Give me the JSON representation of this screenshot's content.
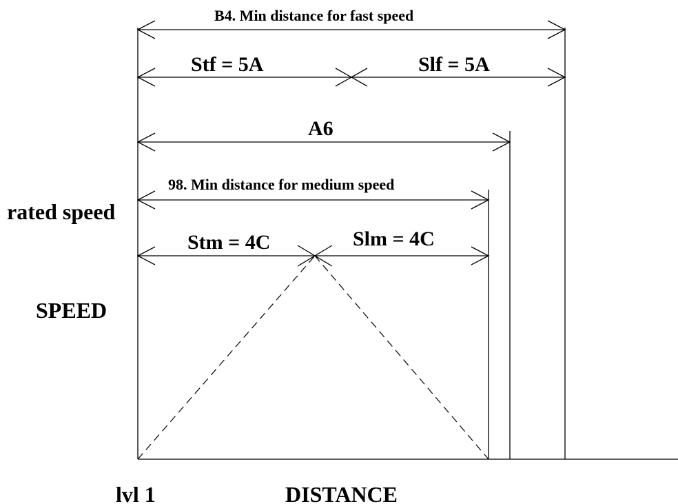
{
  "labels": {
    "fast_total": "B4. Min distance for fast speed",
    "stf": "Stf = 5A",
    "slf": "Slf = 5A",
    "a6": "A6",
    "medium_total": "98. Min distance for medium speed",
    "stm": "Stm = 4C",
    "slm": "Slm = 4C",
    "rated_speed": "rated speed",
    "y_axis": "SPEED",
    "level": "lvl 1",
    "x_axis": "DISTANCE"
  }
}
